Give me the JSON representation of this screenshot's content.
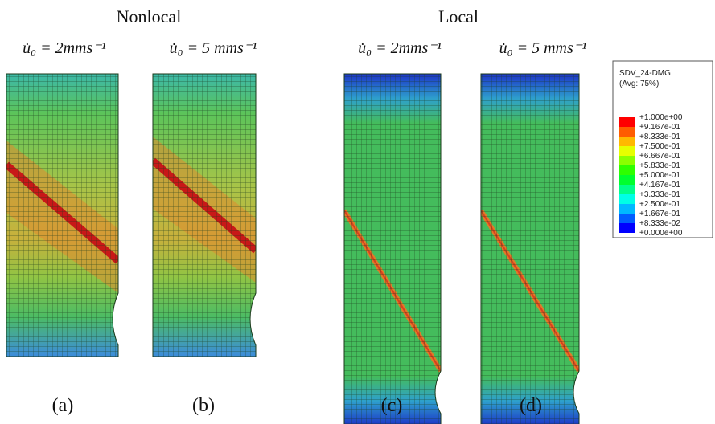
{
  "headers": [
    "Nonlocal",
    "Local"
  ],
  "rate_labels": [
    "u̇₀ = 2mms⁻¹",
    "u̇₀ = 5 mms⁻¹",
    "u̇₀ = 2mms⁻¹",
    "u̇₀ = 5 mms⁻¹"
  ],
  "panel_labels": [
    "(a)",
    "(b)",
    "(c)",
    "(d)"
  ],
  "legend": {
    "title": "SDV_24-DMG",
    "subtitle": "(Avg: 75%)",
    "labels": [
      "+1.000e+00",
      "+9.167e-01",
      "+8.333e-01",
      "+7.500e-01",
      "+6.667e-01",
      "+5.833e-01",
      "+5.000e-01",
      "+4.167e-01",
      "+3.333e-01",
      "+2.500e-01",
      "+1.667e-01",
      "+8.333e-02",
      "+0.000e+00"
    ],
    "colors": [
      "#ff0000",
      "#ff5d00",
      "#ffb900",
      "#e6ff00",
      "#8aff00",
      "#2eff00",
      "#00ff2e",
      "#00ff8a",
      "#00ffe6",
      "#00b9ff",
      "#005dff",
      "#0000ff"
    ]
  }
}
